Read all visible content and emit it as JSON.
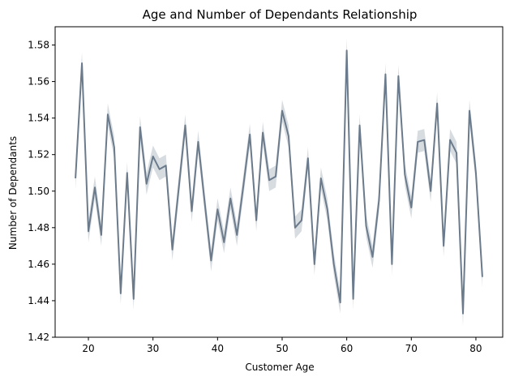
{
  "chart_data": {
    "type": "line",
    "title": "Age and Number of Dependants Relationship",
    "xlabel": "Customer Age",
    "ylabel": "Number of Dependants",
    "xlim": [
      14.85,
      84.15
    ],
    "ylim": [
      1.42,
      1.59
    ],
    "xticks": [
      20,
      30,
      40,
      50,
      60,
      70,
      80
    ],
    "yticks": [
      1.42,
      1.44,
      1.46,
      1.48,
      1.5,
      1.52,
      1.54,
      1.56,
      1.58
    ],
    "grid": false,
    "colors": {
      "line": "#6b7b8c",
      "band": "#b7c0c9"
    },
    "series": [
      {
        "x": [
          18,
          19,
          20,
          21,
          22,
          23,
          24,
          25,
          26,
          27,
          28,
          29,
          30,
          31,
          32,
          33,
          34,
          35,
          36,
          37,
          38,
          39,
          40,
          41,
          42,
          43,
          44,
          45,
          46,
          47,
          48,
          49,
          50,
          51,
          52,
          53,
          54,
          55,
          56,
          57,
          58,
          59,
          60,
          61,
          62,
          63,
          64,
          65,
          66,
          67,
          68,
          69,
          70,
          71,
          72,
          73,
          74,
          75,
          76,
          77,
          78,
          79,
          80,
          81
        ],
        "y": [
          1.507,
          1.57,
          1.478,
          1.502,
          1.476,
          1.542,
          1.524,
          1.444,
          1.51,
          1.441,
          1.535,
          1.504,
          1.519,
          1.512,
          1.514,
          1.468,
          1.502,
          1.536,
          1.489,
          1.527,
          1.494,
          1.462,
          1.49,
          1.472,
          1.496,
          1.476,
          1.503,
          1.531,
          1.484,
          1.532,
          1.506,
          1.508,
          1.544,
          1.53,
          1.48,
          1.484,
          1.518,
          1.46,
          1.507,
          1.49,
          1.46,
          1.439,
          1.577,
          1.441,
          1.536,
          1.481,
          1.464,
          1.495,
          1.564,
          1.46,
          1.563,
          1.509,
          1.491,
          1.527,
          1.528,
          1.5,
          1.548,
          1.47,
          1.528,
          1.521,
          1.433,
          1.544,
          1.51,
          1.453
        ],
        "ci": [
          0.006,
          0.006,
          0.006,
          0.006,
          0.006,
          0.006,
          0.006,
          0.006,
          0.006,
          0.006,
          0.006,
          0.006,
          0.006,
          0.006,
          0.006,
          0.006,
          0.006,
          0.006,
          0.006,
          0.006,
          0.006,
          0.006,
          0.006,
          0.006,
          0.006,
          0.006,
          0.006,
          0.006,
          0.006,
          0.006,
          0.006,
          0.006,
          0.006,
          0.006,
          0.006,
          0.006,
          0.006,
          0.006,
          0.006,
          0.006,
          0.006,
          0.006,
          0.007,
          0.006,
          0.006,
          0.006,
          0.006,
          0.006,
          0.006,
          0.006,
          0.006,
          0.006,
          0.006,
          0.006,
          0.006,
          0.006,
          0.006,
          0.006,
          0.006,
          0.006,
          0.007,
          0.006,
          0.006,
          0.006
        ]
      }
    ]
  }
}
